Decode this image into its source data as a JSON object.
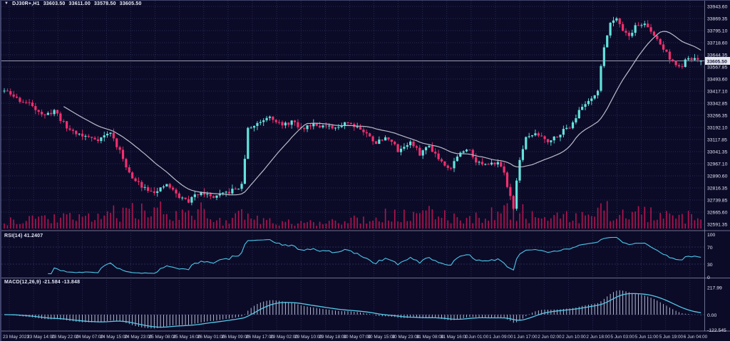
{
  "icons": {
    "collapse": "▼"
  },
  "header": {
    "symbol": "DJ30R+,H1",
    "open": "33603.50",
    "high": "33611.00",
    "low": "33578.50",
    "close": "33605.50"
  },
  "indicators": {
    "rsi_label": "RSI(14) 41.2407",
    "macd_label": "MACD(12,26,9) -21.584 -13.848"
  },
  "colors": {
    "bg": "#0b0b28",
    "grid": "#34345e",
    "bull": "#63e3dd",
    "bear": "#f22f6e",
    "volume": "#b5134f",
    "ma_line": "#b9bcc8",
    "rsi_line": "#4cc6e8",
    "macd_signal": "#55cae8",
    "macd_histogram": "#c7cde0",
    "separator": "#8c91ad",
    "axis_text": "#e2e5f2",
    "time_text": "#ced3e5",
    "price_badge_bg": "#e6e8ef",
    "price_badge_text": "#14143c",
    "price_line": "#c9cbd8"
  },
  "chart_data": {
    "type": "candlestick",
    "symbol": "DJ30R+",
    "timeframe": "H1",
    "title": "DJ30R+,H1 33603.50 33611.00 33578.50 33605.50",
    "ohlc_last": {
      "open": 33603.5,
      "high": 33611.0,
      "low": 33578.5,
      "close": 33605.5
    },
    "price_line": 33605.5,
    "price_line_label": "33605.50",
    "y_ticks": [
      33943.6,
      33869.35,
      33795.1,
      33718.6,
      33644.35,
      33567.85,
      33493.6,
      33417.1,
      33342.85,
      33266.35,
      33192.1,
      33117.85,
      33041.35,
      32967.1,
      32890.6,
      32816.35,
      32739.85,
      32665.6,
      32591.35
    ],
    "x_ticks": [
      "23 May 2023",
      "23 May 14:00",
      "23 May 22:00",
      "24 May 07:00",
      "24 May 15:00",
      "24 May 23:00",
      "25 May 08:00",
      "25 May 16:00",
      "26 May 01:00",
      "26 May 09:00",
      "26 May 17:00",
      "29 May 02:00",
      "29 May 10:00",
      "29 May 18:00",
      "30 May 07:00",
      "30 May 15:00",
      "30 May 23:00",
      "31 May 08:00",
      "31 May 16:00",
      "1 Jun 01:00",
      "1 Jun 09:00",
      "1 Jun 17:00",
      "2 Jun 02:00",
      "2 Jun 10:00",
      "2 Jun 18:00",
      "5 Jun 03:00",
      "5 Jun 11:00",
      "5 Jun 19:00",
      "6 Jun 04:00"
    ],
    "candle_count": 224,
    "price_waypoints": [
      [
        0,
        33420
      ],
      [
        5,
        33360
      ],
      [
        9,
        33330
      ],
      [
        13,
        33260
      ],
      [
        16,
        33300
      ],
      [
        20,
        33190
      ],
      [
        25,
        33140
      ],
      [
        30,
        33120
      ],
      [
        34,
        33160
      ],
      [
        38,
        33000
      ],
      [
        41,
        32870
      ],
      [
        45,
        32820
      ],
      [
        49,
        32790
      ],
      [
        52,
        32840
      ],
      [
        56,
        32760
      ],
      [
        59,
        32735
      ],
      [
        63,
        32800
      ],
      [
        66,
        32760
      ],
      [
        69,
        32770
      ],
      [
        73,
        32800
      ],
      [
        76,
        32830
      ],
      [
        78,
        33180
      ],
      [
        82,
        33230
      ],
      [
        85,
        33270
      ],
      [
        89,
        33200
      ],
      [
        92,
        33230
      ],
      [
        95,
        33180
      ],
      [
        99,
        33220
      ],
      [
        102,
        33200
      ],
      [
        106,
        33180
      ],
      [
        109,
        33230
      ],
      [
        113,
        33200
      ],
      [
        116,
        33150
      ],
      [
        119,
        33100
      ],
      [
        123,
        33130
      ],
      [
        126,
        33050
      ],
      [
        130,
        33100
      ],
      [
        133,
        33030
      ],
      [
        136,
        33080
      ],
      [
        140,
        32980
      ],
      [
        143,
        32940
      ],
      [
        145,
        33020
      ],
      [
        149,
        33060
      ],
      [
        151,
        32980
      ],
      [
        155,
        32950
      ],
      [
        158,
        32990
      ],
      [
        160,
        32900
      ],
      [
        163,
        32700
      ],
      [
        165,
        33000
      ],
      [
        167,
        33120
      ],
      [
        169,
        33150
      ],
      [
        172,
        33140
      ],
      [
        174,
        33110
      ],
      [
        176,
        33130
      ],
      [
        178,
        33160
      ],
      [
        181,
        33200
      ],
      [
        183,
        33260
      ],
      [
        185,
        33320
      ],
      [
        188,
        33380
      ],
      [
        190,
        33420
      ],
      [
        192,
        33700
      ],
      [
        194,
        33840
      ],
      [
        196,
        33880
      ],
      [
        198,
        33800
      ],
      [
        200,
        33760
      ],
      [
        202,
        33820
      ],
      [
        205,
        33840
      ],
      [
        207,
        33780
      ],
      [
        209,
        33740
      ],
      [
        211,
        33680
      ],
      [
        214,
        33600
      ],
      [
        216,
        33560
      ],
      [
        218,
        33600
      ],
      [
        220,
        33620
      ],
      [
        223,
        33605.5
      ]
    ],
    "volume_waypoints": [
      [
        0,
        0.3
      ],
      [
        10,
        0.55
      ],
      [
        25,
        0.45
      ],
      [
        38,
        0.85
      ],
      [
        45,
        0.75
      ],
      [
        52,
        0.9
      ],
      [
        58,
        0.65
      ],
      [
        63,
        0.8
      ],
      [
        70,
        0.35
      ],
      [
        76,
        0.6
      ],
      [
        80,
        0.45
      ],
      [
        88,
        0.3
      ],
      [
        95,
        0.25
      ],
      [
        100,
        0.3
      ],
      [
        108,
        0.45
      ],
      [
        116,
        0.5
      ],
      [
        123,
        0.65
      ],
      [
        130,
        0.55
      ],
      [
        136,
        0.7
      ],
      [
        143,
        0.6
      ],
      [
        150,
        0.5
      ],
      [
        158,
        0.75
      ],
      [
        163,
        0.95
      ],
      [
        167,
        0.7
      ],
      [
        172,
        0.45
      ],
      [
        178,
        0.5
      ],
      [
        183,
        0.6
      ],
      [
        188,
        0.55
      ],
      [
        192,
        0.9
      ],
      [
        196,
        0.8
      ],
      [
        200,
        0.65
      ],
      [
        205,
        0.75
      ],
      [
        210,
        0.6
      ],
      [
        215,
        0.45
      ],
      [
        219,
        0.55
      ],
      [
        223,
        0.35
      ]
    ],
    "noise": {
      "seed": 11,
      "close_jitter": 14,
      "wick": 26
    },
    "ma": {
      "period": 20
    },
    "rsi": {
      "period": 14,
      "last": 41.2407,
      "levels": [
        100,
        70,
        30,
        0
      ],
      "overbought": 70,
      "oversold": 30
    },
    "macd": {
      "fast": 12,
      "slow": 26,
      "signal": 9,
      "last_macd": -21.584,
      "last_signal": -13.848,
      "axis_labels": [
        "217.99",
        "0.00",
        "-122.545"
      ],
      "axis_values": [
        217.99,
        0.0,
        -122.545
      ]
    }
  }
}
